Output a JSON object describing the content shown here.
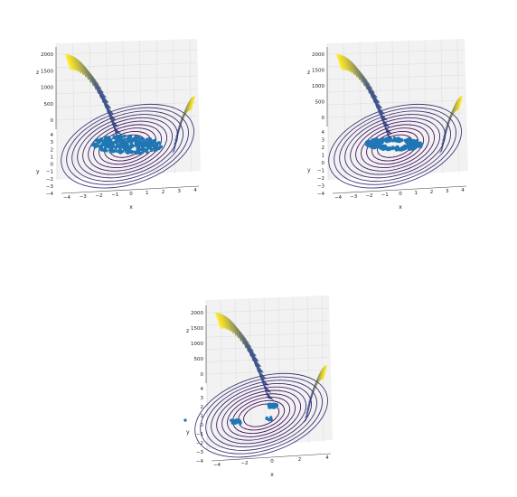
{
  "colors": {
    "contour_low": "#440154",
    "contour_mid": "#3b528b",
    "contour_high": "#fde725",
    "points": "#1f77b4",
    "pane": "#f2f2f2",
    "grid": "#dcdcdc"
  },
  "chart_data": [
    {
      "type": "surface3d-contour-scatter",
      "xlabel": "x",
      "ylabel": "y",
      "zlabel": "z",
      "x_ticks": [
        "−4",
        "−3",
        "−2",
        "−1",
        "0",
        "1",
        "2",
        "3",
        "4"
      ],
      "y_ticks": [
        "4",
        "3",
        "2",
        "1",
        "0",
        "−1",
        "−2",
        "−3",
        "−4"
      ],
      "z_ticks": [
        "2000",
        "1500",
        "1000",
        "500",
        "0"
      ],
      "xlim": [
        -4.5,
        4.5
      ],
      "ylim": [
        -4,
        4
      ],
      "zlim": [
        0,
        2100
      ],
      "scatter": {
        "kind": "filled-ellipse",
        "center": [
          0,
          0.5
        ],
        "spread_x": 2.2,
        "spread_y": 1.3,
        "count": 320
      }
    },
    {
      "type": "surface3d-contour-scatter",
      "xlabel": "x",
      "ylabel": "y",
      "zlabel": "z",
      "x_ticks": [
        "−4",
        "−3",
        "−2",
        "−1",
        "0",
        "1",
        "2",
        "3",
        "4"
      ],
      "y_ticks": [
        "4",
        "3",
        "2",
        "1",
        "0",
        "−1",
        "−2",
        "−3",
        "−4"
      ],
      "z_ticks": [
        "2000",
        "1500",
        "1000",
        "500",
        "0"
      ],
      "xlim": [
        -4.5,
        4.5
      ],
      "ylim": [
        -4,
        4
      ],
      "zlim": [
        0,
        2100
      ],
      "scatter": {
        "kind": "ring-ellipse",
        "center": [
          0,
          0.6
        ],
        "spread_x": 1.8,
        "spread_y": 0.9,
        "count": 260
      }
    },
    {
      "type": "surface3d-contour-scatter",
      "xlabel": "x",
      "ylabel": "y",
      "zlabel": "z",
      "x_ticks": [
        "−4",
        "−2",
        "0",
        "2",
        "4"
      ],
      "y_ticks": [
        "4",
        "3",
        "2",
        "1",
        "0",
        "−1",
        "−2",
        "−3",
        "−4"
      ],
      "z_ticks": [
        "2000",
        "1500",
        "1000",
        "500",
        "0"
      ],
      "xlim": [
        -4.5,
        4.5
      ],
      "ylim": [
        -4,
        4
      ],
      "zlim": [
        0,
        2100
      ],
      "scatter": {
        "kind": "clusters",
        "clusters": [
          [
            1.0,
            1.6,
            40
          ],
          [
            -1.8,
            -0.6,
            40
          ],
          [
            0.4,
            -0.2,
            6
          ],
          [
            -5.0,
            -0.2,
            1
          ]
        ]
      }
    }
  ]
}
